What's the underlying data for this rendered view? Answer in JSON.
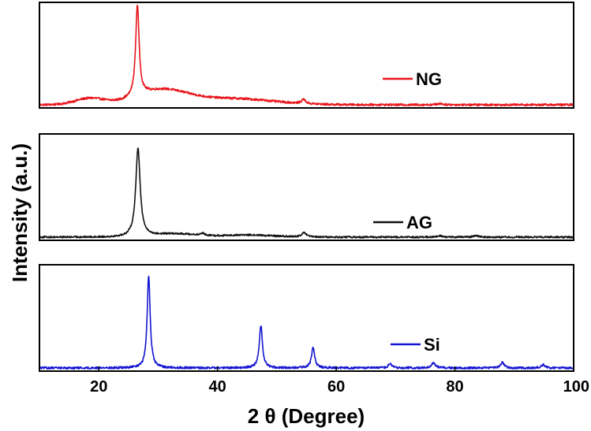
{
  "chart_data": {
    "type": "line",
    "layout": "stacked-panels",
    "xlabel": "2 θ (Degree)",
    "ylabel": "Intensity (a.u.)",
    "xlim": [
      10,
      100
    ],
    "x_ticks": [
      20,
      40,
      60,
      80,
      100
    ],
    "x_tick_labels": [
      "20",
      "40",
      "60",
      "80",
      "100"
    ],
    "y_ticks_shown": false,
    "grid": false,
    "panels": [
      {
        "name": "NG",
        "legend_label": "NG",
        "color": "#e8141a",
        "legend_position": "middle-right",
        "ylim": [
          0,
          100
        ],
        "baseline": 3,
        "noise": 1.0,
        "broad_features": [
          {
            "center": 18.5,
            "height": 6,
            "width": 3.5
          },
          {
            "center": 30.5,
            "height": 13,
            "width": 6
          },
          {
            "center": 42,
            "height": 6,
            "width": 10
          }
        ],
        "peaks": [
          {
            "center": 26.5,
            "height": 86,
            "width": 0.35
          },
          {
            "center": 54.5,
            "height": 4,
            "width": 0.4
          },
          {
            "center": 77.5,
            "height": 1.2,
            "width": 0.5
          }
        ]
      },
      {
        "name": "AG",
        "legend_label": "AG",
        "color": "#111111",
        "legend_position": "lower-right",
        "ylim": [
          0,
          100
        ],
        "baseline": 3,
        "noise": 0.8,
        "broad_features": [
          {
            "center": 33,
            "height": 3,
            "width": 5
          },
          {
            "center": 45,
            "height": 2,
            "width": 6
          }
        ],
        "peaks": [
          {
            "center": 26.6,
            "height": 83,
            "width": 0.45
          },
          {
            "center": 37.5,
            "height": 2,
            "width": 0.4
          },
          {
            "center": 54.6,
            "height": 4,
            "width": 0.45
          },
          {
            "center": 77.5,
            "height": 1.2,
            "width": 0.5
          },
          {
            "center": 83.5,
            "height": 1.5,
            "width": 0.5
          }
        ]
      },
      {
        "name": "Si",
        "legend_label": "Si",
        "color": "#1414d2",
        "legend_position": "lower-right",
        "ylim": [
          0,
          100
        ],
        "baseline": 3,
        "noise": 1.0,
        "broad_features": [],
        "peaks": [
          {
            "center": 28.4,
            "height": 87,
            "width": 0.3
          },
          {
            "center": 47.3,
            "height": 40,
            "width": 0.32
          },
          {
            "center": 56.1,
            "height": 19,
            "width": 0.32
          },
          {
            "center": 69.1,
            "height": 4,
            "width": 0.35
          },
          {
            "center": 76.4,
            "height": 5,
            "width": 0.35
          },
          {
            "center": 88.0,
            "height": 5,
            "width": 0.35
          },
          {
            "center": 94.9,
            "height": 3,
            "width": 0.35
          }
        ]
      }
    ]
  }
}
